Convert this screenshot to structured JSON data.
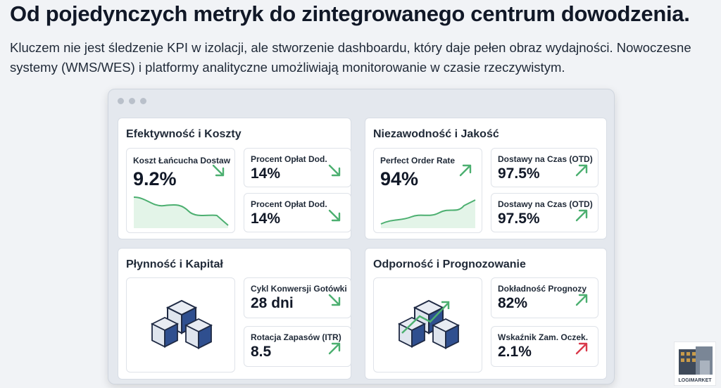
{
  "title": "Od pojedynczych metryk do zintegrowanego centrum dowodzenia.",
  "subtitle": "Kluczem nie jest śledzenie KPI w izolacji, ale stworzenie dashboardu, który daje pełen obraz wydajności. Nowoczesne systemy (WMS/WES) i platformy analityczne umożliwiają monitorowanie w czasie rzeczywistym.",
  "colors": {
    "up_good": "#4caf70",
    "down_good": "#4caf70",
    "up_bad": "#d9394a",
    "box_blue": "#2f4f8f"
  },
  "panels": [
    {
      "title": "Efektywność i Koszty",
      "main": {
        "label": "Koszt Łańcucha Dostaw",
        "value": "9.2%",
        "trend": "down",
        "chart": "sparkline-down"
      },
      "cards": [
        {
          "label": "Procent Opłat Dod.",
          "value": "14%",
          "trend": "down"
        },
        {
          "label": "Procent Opłat Dod.",
          "value": "14%",
          "trend": "down"
        }
      ]
    },
    {
      "title": "Niezawodność i Jakość",
      "main": {
        "label": "Perfect Order Rate",
        "value": "94%",
        "trend": "up",
        "chart": "sparkline-up"
      },
      "cards": [
        {
          "label": "Dostawy na Czas (OTD)",
          "value": "97.5%",
          "trend": "up"
        },
        {
          "label": "Dostawy na Czas (OTD)",
          "value": "97.5%",
          "trend": "up"
        }
      ]
    },
    {
      "title": "Płynność i Kapitał",
      "main": {
        "icon": "boxes-icon"
      },
      "cards": [
        {
          "label": "Cykl Konwersji Gotówki",
          "value": "28 dni",
          "trend": "down"
        },
        {
          "label": "Rotacja Zapasów (ITR)",
          "value": "8.5",
          "trend": "up"
        }
      ]
    },
    {
      "title": "Odporność i Prognozowanie",
      "main": {
        "icon": "boxes-growth-icon"
      },
      "cards": [
        {
          "label": "Dokładność Prognozy",
          "value": "82%",
          "trend": "up"
        },
        {
          "label": "Wskaźnik Zam. Oczek.",
          "value": "2.1%",
          "trend": "up-bad"
        }
      ]
    }
  ],
  "logo": {
    "text": "LOGIMARKET"
  }
}
